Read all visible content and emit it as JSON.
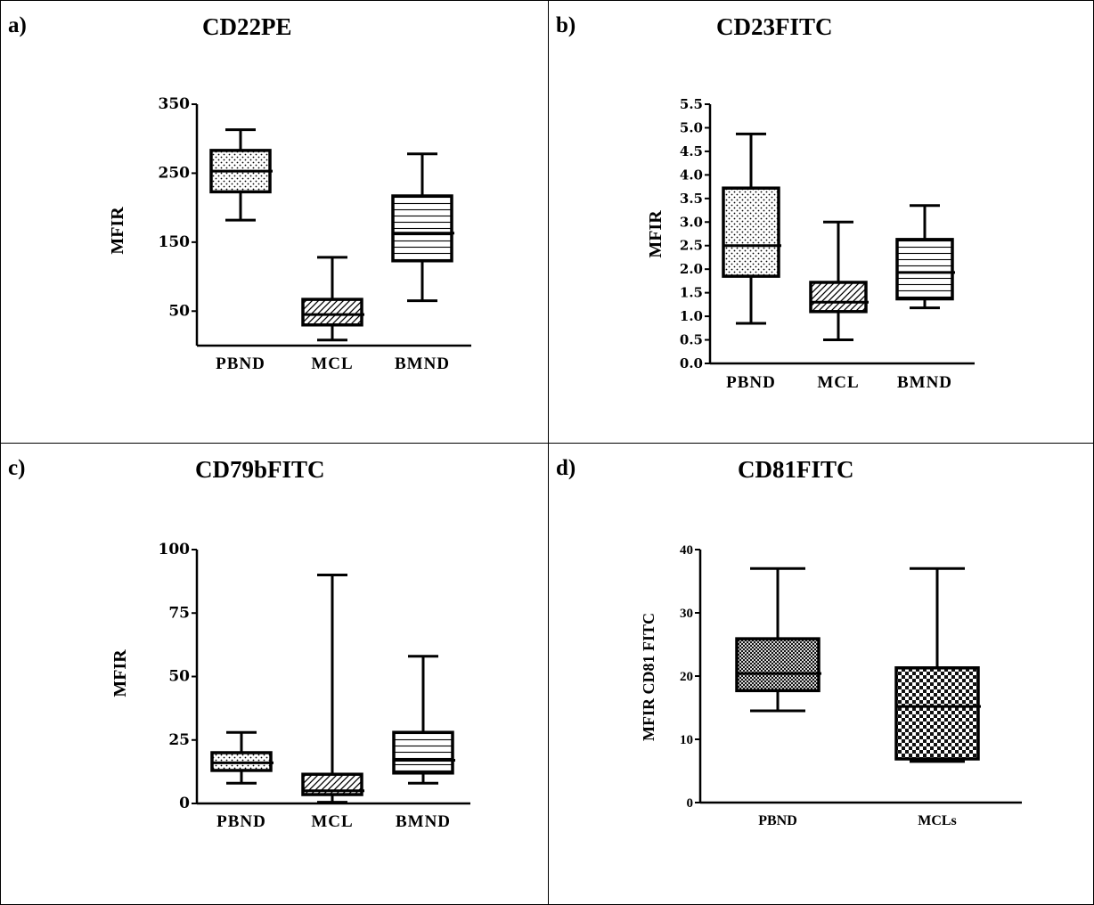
{
  "chart_data": [
    {
      "type": "boxplot",
      "panel_letter": "a)",
      "title": "CD22PE",
      "ylabel": "MFIR",
      "ylim": [
        0,
        350
      ],
      "yticks": [
        "50",
        "150",
        "250",
        "350"
      ],
      "ytick_values": [
        50,
        150,
        250,
        350
      ],
      "categories": [
        "PBND",
        "MCL",
        "BMND"
      ],
      "boxes": [
        {
          "whisker_low": 182,
          "q1": 223,
          "median": 253,
          "q3": 283,
          "whisker_high": 313,
          "fill": "dots"
        },
        {
          "whisker_low": 8,
          "q1": 30,
          "median": 45,
          "q3": 67,
          "whisker_high": 128,
          "fill": "diagonal"
        },
        {
          "whisker_low": 65,
          "q1": 123,
          "median": 163,
          "q3": 217,
          "whisker_high": 278,
          "fill": "horizontal"
        }
      ]
    },
    {
      "type": "boxplot",
      "panel_letter": "b)",
      "title": "CD23FITC",
      "ylabel": "MFIR",
      "ylim": [
        0,
        5.5
      ],
      "yticks": [
        "0.0",
        "0.5",
        "1.0",
        "1.5",
        "2.0",
        "2.5",
        "3.0",
        "3.5",
        "4.0",
        "4.5",
        "5.0",
        "5.5"
      ],
      "ytick_values": [
        0,
        0.5,
        1,
        1.5,
        2,
        2.5,
        3,
        3.5,
        4,
        4.5,
        5,
        5.5
      ],
      "categories": [
        "PBND",
        "MCL",
        "BMND"
      ],
      "boxes": [
        {
          "whisker_low": 0.85,
          "q1": 1.85,
          "median": 2.5,
          "q3": 3.72,
          "whisker_high": 4.87,
          "fill": "dots"
        },
        {
          "whisker_low": 0.5,
          "q1": 1.1,
          "median": 1.3,
          "q3": 1.72,
          "whisker_high": 3.0,
          "fill": "diagonal"
        },
        {
          "whisker_low": 1.18,
          "q1": 1.37,
          "median": 1.93,
          "q3": 2.63,
          "whisker_high": 3.35,
          "fill": "horizontal"
        }
      ]
    },
    {
      "type": "boxplot",
      "panel_letter": "c)",
      "title": "CD79bFITC",
      "ylabel": "MFIR",
      "ylim": [
        0,
        100
      ],
      "yticks": [
        "0",
        "25",
        "50",
        "75",
        "100"
      ],
      "ytick_values": [
        0,
        25,
        50,
        75,
        100
      ],
      "categories": [
        "PBND",
        "MCL",
        "BMND"
      ],
      "boxes": [
        {
          "whisker_low": 8,
          "q1": 13,
          "median": 16,
          "q3": 20,
          "whisker_high": 28,
          "fill": "dots"
        },
        {
          "whisker_low": 0.5,
          "q1": 3.5,
          "median": 5,
          "q3": 11.5,
          "whisker_high": 90,
          "fill": "diagonal"
        },
        {
          "whisker_low": 8,
          "q1": 12,
          "median": 17,
          "q3": 28,
          "whisker_high": 58,
          "fill": "horizontal"
        }
      ]
    },
    {
      "type": "boxplot",
      "panel_letter": "d)",
      "title": "CD81FITC",
      "ylabel": "MFIR CD81 FITC",
      "ylim": [
        0,
        40
      ],
      "yticks": [
        "0",
        "10",
        "20",
        "30",
        "40"
      ],
      "ytick_values": [
        0,
        10,
        20,
        30,
        40
      ],
      "categories": [
        "PBND",
        "MCLs"
      ],
      "boxes": [
        {
          "whisker_low": 14.5,
          "q1": 17.7,
          "median": 20.4,
          "q3": 25.9,
          "whisker_high": 37,
          "fill": "fine-check"
        },
        {
          "whisker_low": 6.5,
          "q1": 6.9,
          "median": 15.2,
          "q3": 21.3,
          "whisker_high": 37,
          "fill": "checker"
        }
      ]
    }
  ]
}
